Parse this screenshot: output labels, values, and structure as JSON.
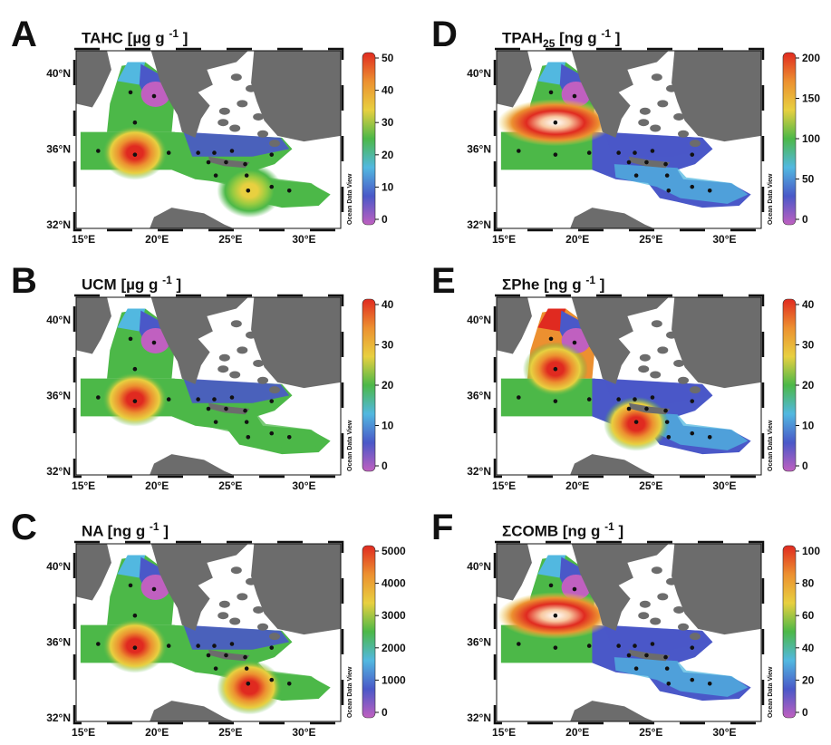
{
  "watermark": "Ocean Data View",
  "lat_ticks": [
    "40°N",
    "36°N",
    "32°N"
  ],
  "lon_ticks": [
    "15°E",
    "20°E",
    "25°E",
    "30°E"
  ],
  "colormap": [
    "#c060c0",
    "#4a58c8",
    "#52b8e0",
    "#4cb848",
    "#e8d040",
    "#ec9030",
    "#e02a20"
  ],
  "stations": [
    [
      18.2,
      39.0
    ],
    [
      19.8,
      38.8
    ],
    [
      18.5,
      37.4
    ],
    [
      16.0,
      35.9
    ],
    [
      18.5,
      35.7
    ],
    [
      20.8,
      35.8
    ],
    [
      22.8,
      35.8
    ],
    [
      23.9,
      35.8
    ],
    [
      25.1,
      35.9
    ],
    [
      27.8,
      35.7
    ],
    [
      23.5,
      35.3
    ],
    [
      24.7,
      35.3
    ],
    [
      26.0,
      35.2
    ],
    [
      24.0,
      34.6
    ],
    [
      26.1,
      34.6
    ],
    [
      27.8,
      34.0
    ],
    [
      29.0,
      33.8
    ],
    [
      26.2,
      33.8
    ]
  ],
  "panels": [
    {
      "letter": "A",
      "title_main": "TAHC",
      "title_unit": "[µg g",
      "title_exp": "-1",
      "title_close": "]",
      "colorbar_ticks": [
        "50",
        "40",
        "30",
        "20",
        "10",
        "0"
      ],
      "hotspots": [
        {
          "lon": 18.5,
          "lat": 35.8,
          "level": "high"
        },
        {
          "lon": 26.3,
          "lat": 33.8,
          "level": "mid"
        }
      ]
    },
    {
      "letter": "B",
      "title_main": "UCM",
      "title_unit": "[µg g",
      "title_exp": "-1",
      "title_close": "]",
      "colorbar_ticks": [
        "40",
        "30",
        "20",
        "10",
        "0"
      ],
      "hotspots": [
        {
          "lon": 18.5,
          "lat": 35.8,
          "level": "high"
        }
      ]
    },
    {
      "letter": "C",
      "title_main": "NA",
      "title_unit": "[ng g",
      "title_exp": "-1",
      "title_close": "]",
      "colorbar_ticks": [
        "5000",
        "4000",
        "3000",
        "2000",
        "1000",
        "0"
      ],
      "hotspots": [
        {
          "lon": 18.5,
          "lat": 35.8,
          "level": "high"
        },
        {
          "lon": 26.3,
          "lat": 33.6,
          "level": "high"
        }
      ]
    },
    {
      "letter": "D",
      "title_main": "TPAH",
      "title_sub": "25",
      "title_unit": "[ng g",
      "title_exp": "-1",
      "title_close": "]",
      "colorbar_ticks": [
        "200",
        "150",
        "100",
        "50",
        "0"
      ],
      "hotspots": [
        {
          "lon": 18.5,
          "lat": 37.4,
          "level": "extreme"
        }
      ]
    },
    {
      "letter": "E",
      "title_main": "ΣPhe",
      "title_unit": "[ng g",
      "title_exp": "-1",
      "title_close": "]",
      "colorbar_ticks": [
        "40",
        "30",
        "20",
        "10",
        "0"
      ],
      "hotspots": [
        {
          "lon": 18.5,
          "lat": 37.4,
          "level": "high"
        },
        {
          "lon": 24.0,
          "lat": 34.5,
          "level": "high"
        }
      ]
    },
    {
      "letter": "F",
      "title_main": "ΣCOMB",
      "title_unit": "[ng g",
      "title_exp": "-1",
      "title_close": "]",
      "colorbar_ticks": [
        "100",
        "80",
        "60",
        "40",
        "20",
        "0"
      ],
      "hotspots": [
        {
          "lon": 18.5,
          "lat": 37.4,
          "level": "extreme"
        }
      ]
    }
  ]
}
